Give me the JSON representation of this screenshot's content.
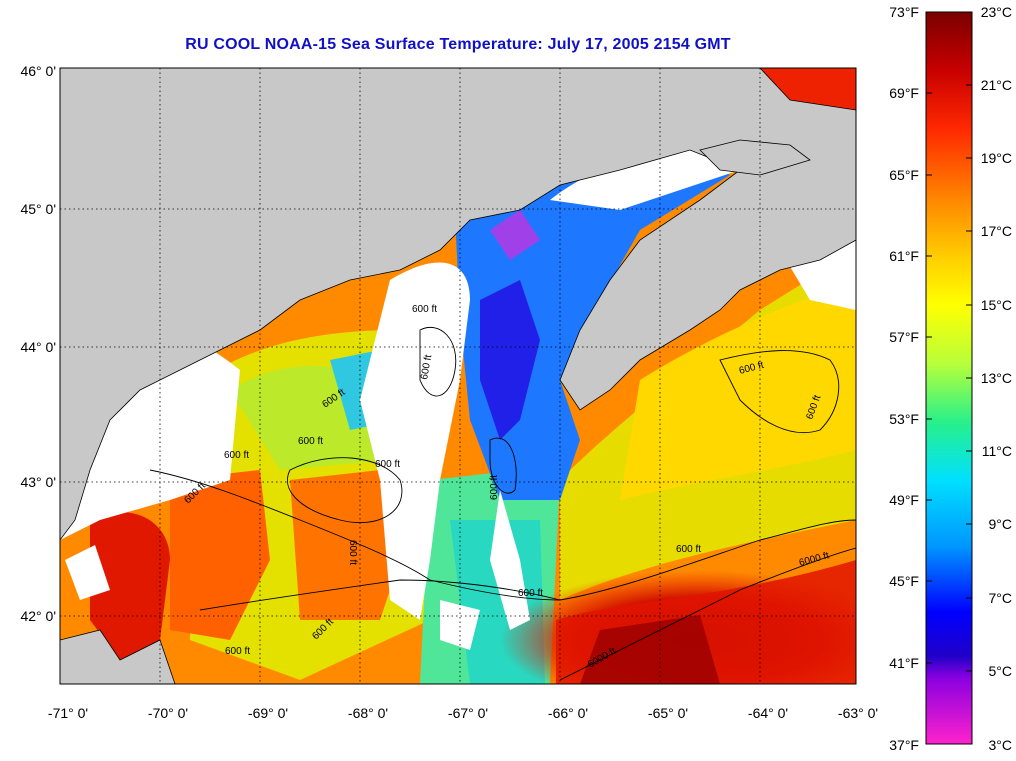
{
  "title": "RU COOL  NOAA-15  Sea Surface Temperature:  July 17, 2005 2154 GMT",
  "map": {
    "lon_range": [
      -71,
      -63
    ],
    "lat_range": [
      41.5,
      46.1
    ],
    "lat_labels": [
      "46° 0'",
      "45° 0'",
      "44° 0'",
      "43° 0'",
      "42° 0'"
    ],
    "lon_labels": [
      "-71° 0'",
      "-70° 0'",
      "-69° 0'",
      "-68° 0'",
      "-67° 0'",
      "-66° 0'",
      "-65° 0'",
      "-64° 0'",
      "-63° 0'"
    ],
    "isobath_labels": [
      "600 ft",
      "600 ft",
      "600 ft",
      "600 ft",
      "600 ft",
      "600 ft",
      "600 ft",
      "600 ft",
      "600 ft",
      "600 ft",
      "600 ft",
      "600 ft",
      "600 ft",
      "600 ft",
      "600 ft",
      "6000 ft",
      "6000 ft"
    ]
  },
  "colorbar": {
    "fahrenheit_labels": [
      "73°F",
      "69°F",
      "65°F",
      "61°F",
      "57°F",
      "53°F",
      "49°F",
      "45°F",
      "41°F",
      "37°F"
    ],
    "celsius_labels": [
      "23°C",
      "21°C",
      "19°C",
      "17°C",
      "15°C",
      "13°C",
      "11°C",
      "9°C",
      "7°C",
      "5°C",
      "3°C"
    ]
  },
  "colors": {
    "title": "#1010c8",
    "land": "#c8c8c8",
    "cloud": "#ffffff"
  }
}
